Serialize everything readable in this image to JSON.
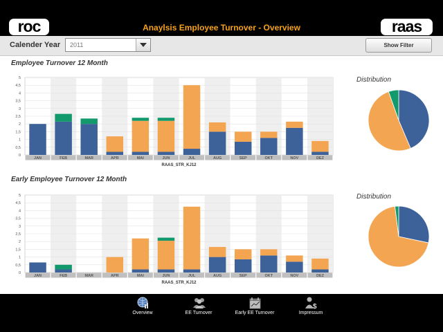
{
  "header": {
    "logo_left": "roc",
    "logo_right": "raas",
    "title": "Anaylsis Employee Turnover - Overview"
  },
  "filter": {
    "label": "Calender Year",
    "year": "2011",
    "show_filter_label": "Show Filter"
  },
  "colors": {
    "blue": "#3d629a",
    "orange": "#f4a552",
    "green": "#139a6c"
  },
  "chart_data": [
    {
      "type": "bar",
      "stacked": true,
      "title": "Employee Turnover 12 Month",
      "xlabel": "RAAS_STR_KJ12",
      "ylim": [
        0,
        5
      ],
      "yticks": [
        "0",
        "0,5",
        "1",
        "1,5",
        "2",
        "2,5",
        "3",
        "3,5",
        "4",
        "4,5",
        "5"
      ],
      "categories": [
        "JAN",
        "FEB",
        "MAR",
        "APR",
        "MAI",
        "JUN",
        "JUL",
        "AUG",
        "SEP",
        "OKT",
        "NOV",
        "DEZ"
      ],
      "series": [
        {
          "color": "#3d629a",
          "values": [
            2,
            2.15,
            2,
            0.2,
            0.2,
            0.2,
            0.4,
            1.5,
            0.85,
            1.1,
            1.75,
            0.2
          ]
        },
        {
          "color": "#f4a552",
          "values": [
            0,
            0,
            0,
            1,
            2,
            2,
            4.1,
            0.6,
            0.65,
            0.4,
            0.4,
            0.7
          ]
        },
        {
          "color": "#139a6c",
          "values": [
            0,
            0.5,
            0.35,
            0,
            0.2,
            0.2,
            0,
            0,
            0,
            0,
            0,
            0
          ]
        }
      ],
      "distribution": {
        "title": "Distribution",
        "slices": [
          0.436,
          0.51,
          0.054
        ]
      }
    },
    {
      "type": "bar",
      "stacked": true,
      "title": "Early Employee Turnover 12 Month",
      "xlabel": "RAAS_STR_KJ12",
      "ylim": [
        0,
        5
      ],
      "yticks": [
        "0",
        "0,5",
        "1",
        "1,5",
        "2",
        "2,5",
        "3",
        "3,5",
        "4",
        "4,5",
        "5"
      ],
      "categories": [
        "JAN",
        "FEB",
        "MAR",
        "APR",
        "MAI",
        "JUN",
        "JUL",
        "AUG",
        "SEP",
        "OKT",
        "NOV",
        "DEZ"
      ],
      "series": [
        {
          "color": "#3d629a",
          "values": [
            0.65,
            0.2,
            0,
            0,
            0.2,
            0.2,
            0.2,
            1,
            0.85,
            1.1,
            0.7,
            0.2
          ]
        },
        {
          "color": "#f4a552",
          "values": [
            0,
            0,
            0,
            1,
            2,
            1.85,
            4.05,
            0.65,
            0.65,
            0.4,
            0.4,
            0.7
          ]
        },
        {
          "color": "#139a6c",
          "values": [
            0,
            0.3,
            0,
            0,
            0,
            0.2,
            0,
            0,
            0,
            0,
            0,
            0
          ]
        }
      ],
      "distribution": {
        "title": "Distribution",
        "slices": [
          0.283,
          0.697,
          0.02
        ]
      }
    }
  ],
  "nav": {
    "items": [
      "Overview",
      "EE Turnover",
      "Early EE Turnover",
      "Impressum"
    ]
  }
}
